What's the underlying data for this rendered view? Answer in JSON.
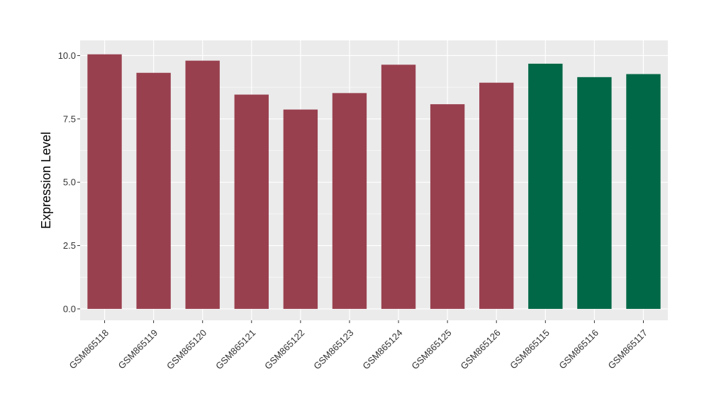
{
  "chart_data": {
    "type": "bar",
    "title": "",
    "xlabel": "",
    "ylabel": "Expression Level",
    "ylim": [
      -0.45,
      10.6
    ],
    "yticks": [
      0.0,
      2.5,
      5.0,
      7.5,
      10.0
    ],
    "ytick_labels": [
      "0.0",
      "2.5",
      "5.0",
      "7.5",
      "10.0"
    ],
    "grid": true,
    "legend": "none",
    "categories": [
      "GSM865118",
      "GSM865119",
      "GSM865120",
      "GSM865121",
      "GSM865122",
      "GSM865123",
      "GSM865124",
      "GSM865125",
      "GSM865126",
      "GSM865115",
      "GSM865116",
      "GSM865117"
    ],
    "values": [
      10.05,
      9.32,
      9.8,
      8.46,
      7.87,
      8.52,
      9.64,
      8.08,
      8.93,
      9.68,
      9.15,
      9.27
    ],
    "bar_colors": [
      "#99404f",
      "#99404f",
      "#99404f",
      "#99404f",
      "#99404f",
      "#99404f",
      "#99404f",
      "#99404f",
      "#99404f",
      "#006846",
      "#006846",
      "#006846"
    ],
    "panel_background": "#ebebeb",
    "grid_color": "#ffffff"
  }
}
